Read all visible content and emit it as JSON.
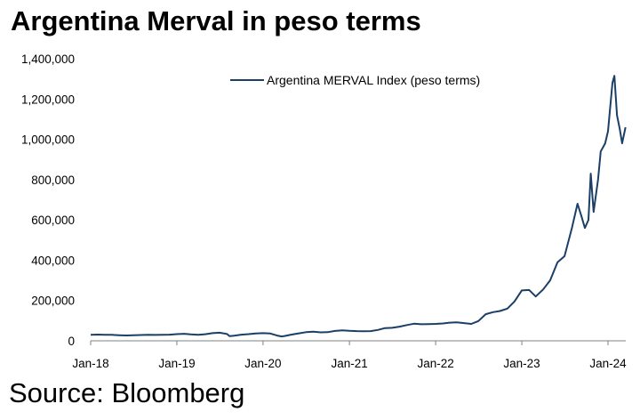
{
  "title": "Argentina Merval in peso terms",
  "source": "Source: Bloomberg",
  "colors": {
    "series_line": "#1b3f66",
    "axis": "#808080",
    "text": "#000000",
    "background": "#ffffff"
  },
  "chart_data": {
    "type": "line",
    "title": "Argentina Merval in peso terms",
    "xlabel": "",
    "ylabel": "",
    "grid": false,
    "legend_position": "top-right",
    "ylim": [
      0,
      1400000
    ],
    "xlim": [
      "2018-01-01",
      "2024-03-15"
    ],
    "y_ticks": [
      0,
      200000,
      400000,
      600000,
      800000,
      1000000,
      1200000,
      1400000
    ],
    "y_tick_labels": [
      "0",
      "200,000",
      "400,000",
      "600,000",
      "800,000",
      "1,000,000",
      "1,200,000",
      "1,400,000"
    ],
    "x_ticks": [
      "2018-01-01",
      "2019-01-01",
      "2020-01-01",
      "2021-01-01",
      "2022-01-01",
      "2023-01-01",
      "2024-01-01"
    ],
    "x_tick_labels": [
      "Jan-18",
      "Jan-19",
      "Jan-20",
      "Jan-21",
      "Jan-22",
      "Jan-23",
      "Jan-24"
    ],
    "series": [
      {
        "name": "Argentina MERVAL Index (peso terms)",
        "color": "#1b3f66",
        "points": [
          [
            "2018-01-01",
            30000
          ],
          [
            "2018-02-01",
            31000
          ],
          [
            "2018-03-01",
            30000
          ],
          [
            "2018-04-01",
            29500
          ],
          [
            "2018-05-01",
            28000
          ],
          [
            "2018-06-01",
            26500
          ],
          [
            "2018-07-01",
            27500
          ],
          [
            "2018-08-01",
            28500
          ],
          [
            "2018-09-01",
            30000
          ],
          [
            "2018-10-01",
            29000
          ],
          [
            "2018-11-01",
            30000
          ],
          [
            "2018-12-01",
            30500
          ],
          [
            "2019-01-01",
            33000
          ],
          [
            "2019-02-01",
            35000
          ],
          [
            "2019-03-01",
            32000
          ],
          [
            "2019-04-01",
            29500
          ],
          [
            "2019-05-01",
            32500
          ],
          [
            "2019-06-01",
            38000
          ],
          [
            "2019-07-01",
            40000
          ],
          [
            "2019-08-01",
            34000
          ],
          [
            "2019-08-12",
            23000
          ],
          [
            "2019-09-01",
            25500
          ],
          [
            "2019-10-01",
            30500
          ],
          [
            "2019-11-01",
            33000
          ],
          [
            "2019-12-01",
            36500
          ],
          [
            "2020-01-01",
            38000
          ],
          [
            "2020-02-01",
            36000
          ],
          [
            "2020-03-01",
            26000
          ],
          [
            "2020-03-20",
            21500
          ],
          [
            "2020-04-01",
            24000
          ],
          [
            "2020-05-01",
            31000
          ],
          [
            "2020-06-01",
            37000
          ],
          [
            "2020-07-01",
            43000
          ],
          [
            "2020-08-01",
            45000
          ],
          [
            "2020-09-01",
            42000
          ],
          [
            "2020-10-01",
            43000
          ],
          [
            "2020-11-01",
            49000
          ],
          [
            "2020-12-01",
            51500
          ],
          [
            "2021-01-01",
            49500
          ],
          [
            "2021-02-01",
            48000
          ],
          [
            "2021-03-01",
            47500
          ],
          [
            "2021-04-01",
            48000
          ],
          [
            "2021-05-01",
            54000
          ],
          [
            "2021-06-01",
            63000
          ],
          [
            "2021-07-01",
            64500
          ],
          [
            "2021-08-01",
            70000
          ],
          [
            "2021-09-01",
            78000
          ],
          [
            "2021-10-01",
            85000
          ],
          [
            "2021-11-01",
            82000
          ],
          [
            "2021-12-01",
            83000
          ],
          [
            "2022-01-01",
            84000
          ],
          [
            "2022-02-01",
            86000
          ],
          [
            "2022-03-01",
            90000
          ],
          [
            "2022-04-01",
            92000
          ],
          [
            "2022-05-01",
            88000
          ],
          [
            "2022-06-01",
            84000
          ],
          [
            "2022-07-01",
            98000
          ],
          [
            "2022-08-01",
            132000
          ],
          [
            "2022-09-01",
            142000
          ],
          [
            "2022-10-01",
            148000
          ],
          [
            "2022-11-01",
            160000
          ],
          [
            "2022-12-01",
            195000
          ],
          [
            "2023-01-01",
            250000
          ],
          [
            "2023-02-01",
            252000
          ],
          [
            "2023-03-01",
            220000
          ],
          [
            "2023-04-01",
            255000
          ],
          [
            "2023-05-01",
            300000
          ],
          [
            "2023-06-01",
            390000
          ],
          [
            "2023-07-01",
            420000
          ],
          [
            "2023-08-01",
            560000
          ],
          [
            "2023-08-25",
            680000
          ],
          [
            "2023-09-10",
            620000
          ],
          [
            "2023-09-25",
            560000
          ],
          [
            "2023-10-10",
            600000
          ],
          [
            "2023-10-20",
            830000
          ],
          [
            "2023-11-01",
            640000
          ],
          [
            "2023-11-20",
            800000
          ],
          [
            "2023-12-01",
            940000
          ],
          [
            "2023-12-20",
            980000
          ],
          [
            "2024-01-01",
            1040000
          ],
          [
            "2024-01-20",
            1280000
          ],
          [
            "2024-01-28",
            1315000
          ],
          [
            "2024-02-08",
            1120000
          ],
          [
            "2024-02-20",
            1050000
          ],
          [
            "2024-03-01",
            980000
          ],
          [
            "2024-03-15",
            1060000
          ]
        ]
      }
    ]
  }
}
